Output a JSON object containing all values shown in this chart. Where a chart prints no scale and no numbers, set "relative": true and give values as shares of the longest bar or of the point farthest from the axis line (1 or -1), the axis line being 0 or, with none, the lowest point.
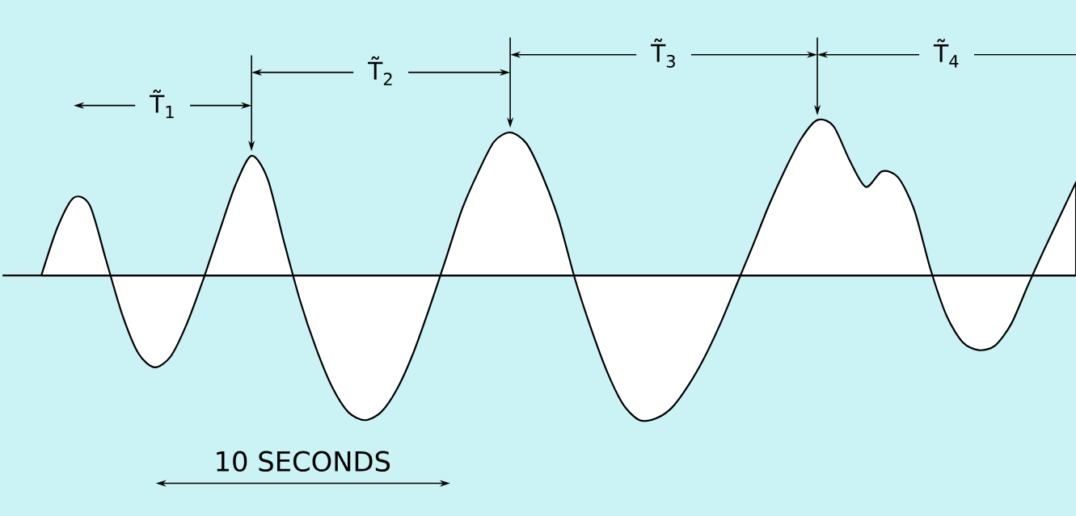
{
  "chart_data": {
    "type": "area",
    "relative": true,
    "color": "#ffffff",
    "categories": [
      null,
      null,
      null,
      null,
      null,
      null,
      null,
      null,
      null,
      null,
      null,
      null,
      null,
      null,
      null,
      null,
      null,
      null,
      null,
      null,
      null,
      null,
      null,
      null,
      null,
      null,
      null,
      null,
      null,
      null,
      null,
      null,
      null,
      null,
      null,
      null,
      null,
      null,
      null,
      null,
      null,
      null,
      null,
      null,
      null,
      null,
      null,
      null,
      null,
      null,
      null,
      null,
      null,
      null,
      null,
      null,
      null,
      null,
      null,
      null,
      null,
      null,
      null,
      null,
      null
    ],
    "values": [
      0,
      0.31,
      0.5,
      0.45,
      0.1,
      -0.25,
      -0.5,
      -0.59,
      -0.52,
      -0.31,
      -0.03,
      0.28,
      0.58,
      0.77,
      0.62,
      0.22,
      -0.16,
      -0.47,
      -0.72,
      -0.88,
      -0.93,
      -0.88,
      -0.73,
      -0.5,
      -0.21,
      0.1,
      0.42,
      0.66,
      0.86,
      0.92,
      0.85,
      0.64,
      0.36,
      -0.02,
      -0.34,
      -0.62,
      -0.83,
      -0.93,
      -0.92,
      -0.85,
      -0.71,
      -0.53,
      -0.31,
      -0.06,
      0.19,
      0.45,
      0.68,
      0.88,
      1,
      0.96,
      0.74,
      0.57,
      0.67,
      0.63,
      0.42,
      0.04,
      -0.26,
      -0.43,
      -0.48,
      -0.45,
      -0.31,
      -0.07,
      0.16,
      0.38,
      0.6
    ],
    "annotations": [
      "T̃$_{1}$",
      "T̃$_{2}$",
      "T̃$_{3}$",
      "T̃$_{4}$",
      "10 SECONDS"
    ]
  }
}
